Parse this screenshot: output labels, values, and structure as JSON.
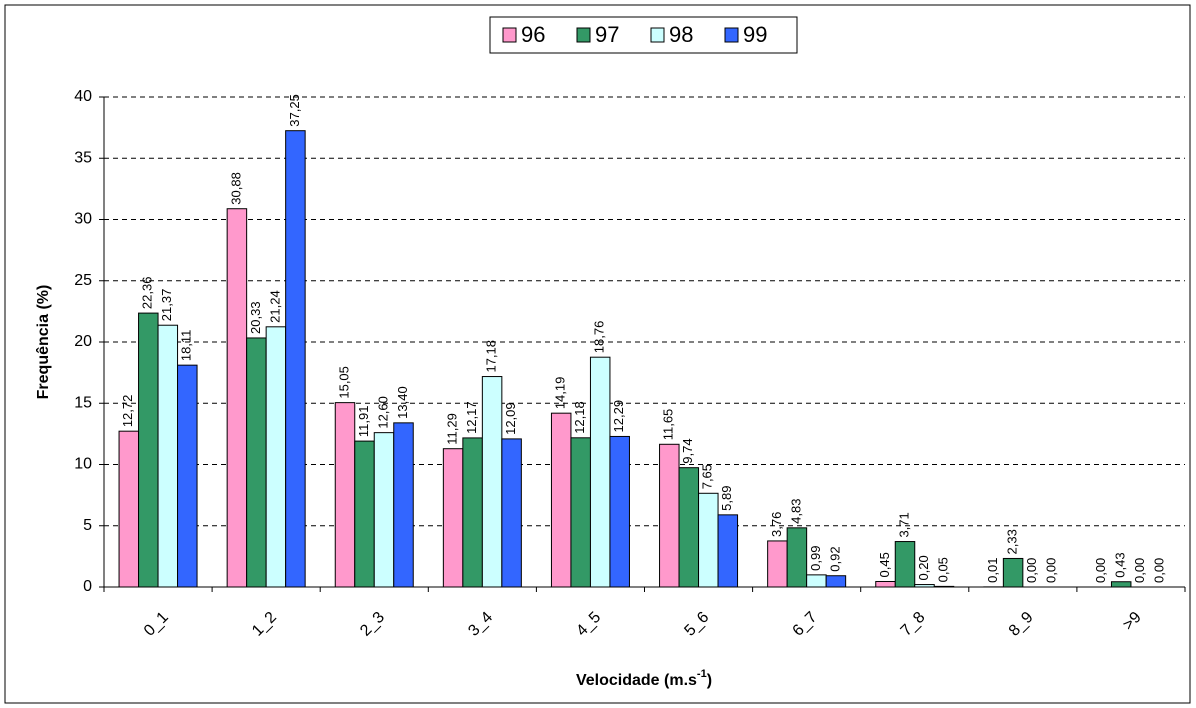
{
  "chart_data": {
    "type": "bar",
    "y_label": "Frequência (%)",
    "x_label_parts": [
      "Velocidade (m.s",
      "-1",
      ")"
    ],
    "categories": [
      "0_1",
      "1_2",
      "2_3",
      "3_4",
      "4_5",
      "5_6",
      "6_7",
      "7_8",
      "8_9",
      ">9"
    ],
    "series": [
      {
        "name": "96",
        "color": "#ff99cc",
        "values": [
          12.72,
          30.88,
          15.05,
          11.29,
          14.19,
          11.65,
          3.76,
          0.45,
          0.01,
          0.0
        ],
        "value_labels": [
          "12,72",
          "30,88",
          "15,05",
          "11,29",
          "14,19",
          "11,65",
          "3,76",
          "0,45",
          "0,01",
          "0,00"
        ]
      },
      {
        "name": "97",
        "color": "#339966",
        "values": [
          22.36,
          20.33,
          11.91,
          12.17,
          12.18,
          9.74,
          4.83,
          3.71,
          2.33,
          0.43
        ],
        "value_labels": [
          "22,36",
          "20,33",
          "11,91",
          "12,17",
          "12,18",
          "9,74",
          "4,83",
          "3,71",
          "2,33",
          "0,43"
        ]
      },
      {
        "name": "98",
        "color": "#ccffff",
        "values": [
          21.37,
          21.24,
          12.6,
          17.18,
          18.76,
          7.65,
          0.99,
          0.2,
          0.0,
          0.0
        ],
        "value_labels": [
          "21,37",
          "21,24",
          "12,60",
          "17,18",
          "18,76",
          "7,65",
          "0,99",
          "0,20",
          "0,00",
          "0,00"
        ]
      },
      {
        "name": "99",
        "color": "#3366ff",
        "values": [
          18.11,
          37.25,
          13.4,
          12.09,
          12.29,
          5.89,
          0.92,
          0.05,
          0.0,
          0.0
        ],
        "value_labels": [
          "18,11",
          "37,25",
          "13,40",
          "12,09",
          "12,29",
          "5,89",
          "0,92",
          "0,05",
          "0,00",
          "0,00"
        ]
      }
    ],
    "ylim": [
      0,
      40
    ],
    "yticks": [
      0,
      5,
      10,
      15,
      20,
      25,
      30,
      35,
      40
    ],
    "grid": true,
    "legend": "top"
  }
}
